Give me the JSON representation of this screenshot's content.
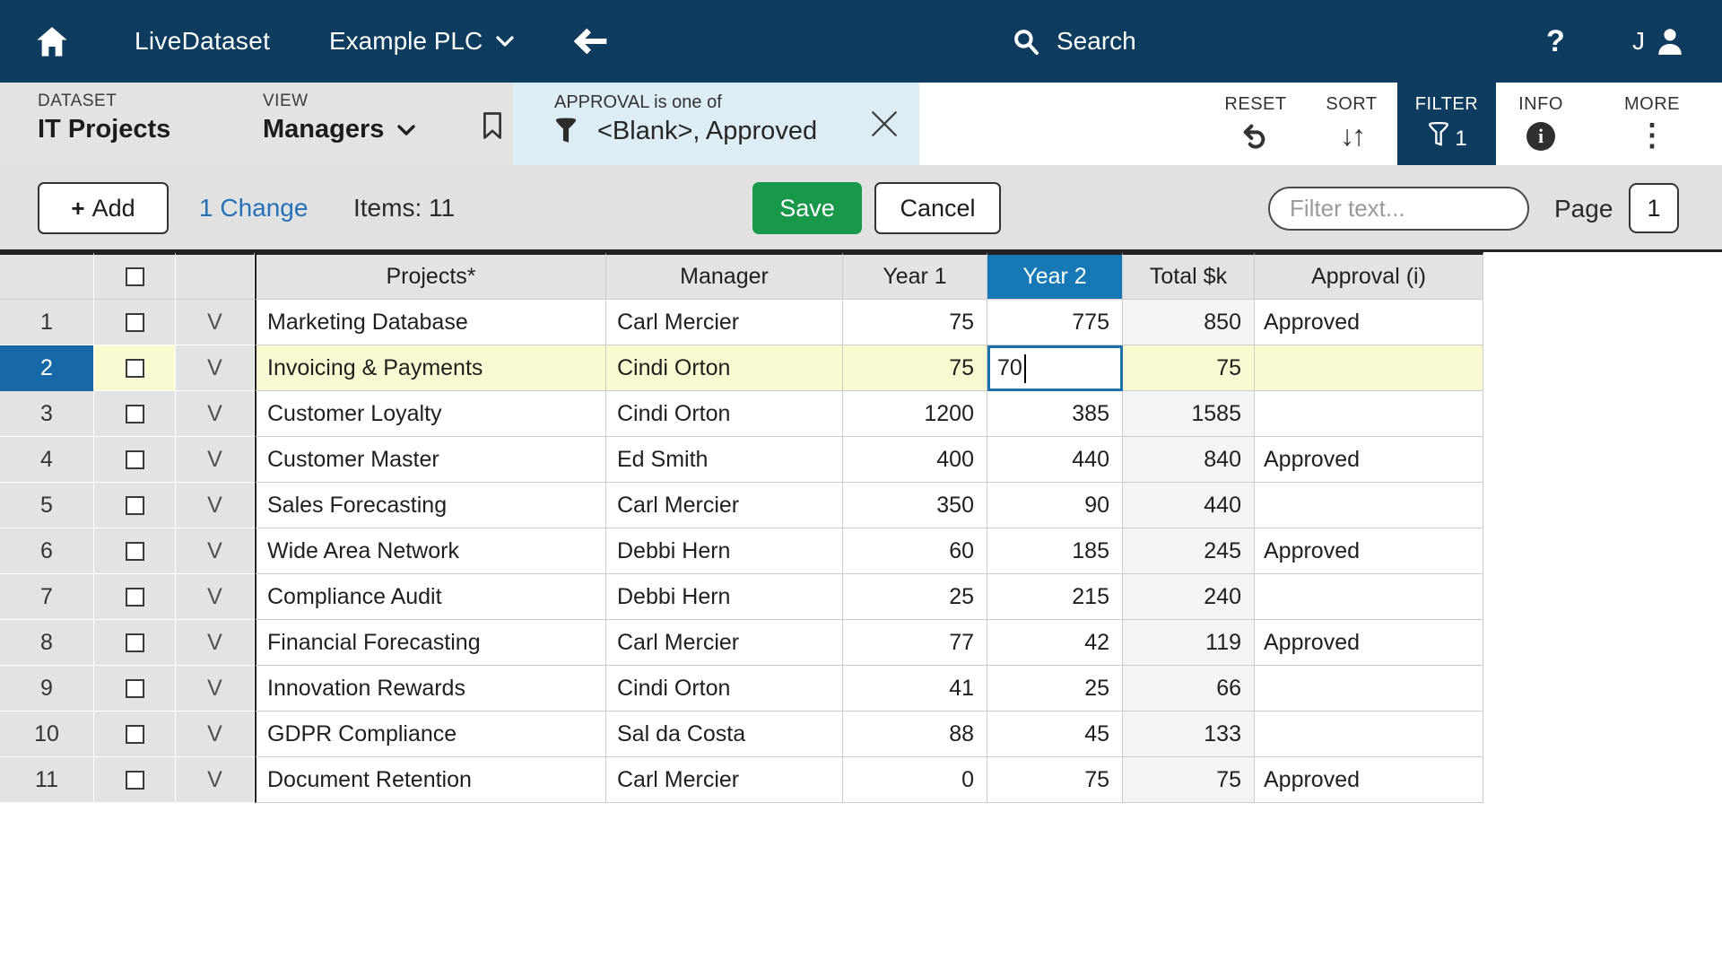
{
  "navbar": {
    "brand": "LiveDataset",
    "org": "Example PLC",
    "search_label": "Search",
    "help_label": "?",
    "user_initial": "J"
  },
  "toolbar": {
    "dataset_label": "DATASET",
    "dataset_name": "IT Projects",
    "view_label": "VIEW",
    "view_name": "Managers",
    "filter_chip": {
      "title": "APPROVAL is one of",
      "value": "<Blank>, Approved"
    },
    "actions": [
      {
        "label": "RESET"
      },
      {
        "label": "SORT"
      },
      {
        "label": "FILTER",
        "badge": "1",
        "active": true
      },
      {
        "label": "INFO"
      },
      {
        "label": "MORE"
      }
    ]
  },
  "actionbar": {
    "add_label": "Add",
    "plus_glyph": "+",
    "changes_label": "1 Change",
    "items_label": "Items: 11",
    "save_label": "Save",
    "cancel_label": "Cancel",
    "filter_placeholder": "Filter text...",
    "page_label": "Page",
    "page_value": "1"
  },
  "table": {
    "columns": [
      "Projects*",
      "Manager",
      "Year 1",
      "Year 2",
      "Total $k",
      "Approval (i)"
    ],
    "active_column": "Year 2",
    "v_marker": "V",
    "edit": {
      "row": 2,
      "column": "Year 2",
      "value": "70"
    },
    "rows": [
      {
        "num": "1",
        "project": "Marketing Database",
        "manager": "Carl Mercier",
        "year1": "75",
        "year2": "775",
        "total": "850",
        "approval": "Approved",
        "selected": false,
        "editing": false
      },
      {
        "num": "2",
        "project": "Invoicing & Payments",
        "manager": "Cindi Orton",
        "year1": "75",
        "year2": "",
        "total": "75",
        "approval": "",
        "selected": true,
        "editing": true
      },
      {
        "num": "3",
        "project": "Customer Loyalty",
        "manager": "Cindi Orton",
        "year1": "1200",
        "year2": "385",
        "total": "1585",
        "approval": "",
        "selected": false,
        "editing": false
      },
      {
        "num": "4",
        "project": "Customer Master",
        "manager": "Ed Smith",
        "year1": "400",
        "year2": "440",
        "total": "840",
        "approval": "Approved",
        "selected": false,
        "editing": false
      },
      {
        "num": "5",
        "project": "Sales Forecasting",
        "manager": "Carl Mercier",
        "year1": "350",
        "year2": "90",
        "total": "440",
        "approval": "",
        "selected": false,
        "editing": false
      },
      {
        "num": "6",
        "project": "Wide Area Network",
        "manager": "Debbi Hern",
        "year1": "60",
        "year2": "185",
        "total": "245",
        "approval": "Approved",
        "selected": false,
        "editing": false
      },
      {
        "num": "7",
        "project": "Compliance Audit",
        "manager": "Debbi Hern",
        "year1": "25",
        "year2": "215",
        "total": "240",
        "approval": "",
        "selected": false,
        "editing": false
      },
      {
        "num": "8",
        "project": "Financial Forecasting",
        "manager": "Carl Mercier",
        "year1": "77",
        "year2": "42",
        "total": "119",
        "approval": "Approved",
        "selected": false,
        "editing": false
      },
      {
        "num": "9",
        "project": "Innovation Rewards",
        "manager": "Cindi Orton",
        "year1": "41",
        "year2": "25",
        "total": "66",
        "approval": "",
        "selected": false,
        "editing": false
      },
      {
        "num": "10",
        "project": "GDPR Compliance",
        "manager": "Sal da Costa",
        "year1": "88",
        "year2": "45",
        "total": "133",
        "approval": "",
        "selected": false,
        "editing": false
      },
      {
        "num": "11",
        "project": "Document Retention",
        "manager": "Carl Mercier",
        "year1": "0",
        "year2": "75",
        "total": "75",
        "approval": "Approved",
        "selected": false,
        "editing": false
      }
    ]
  },
  "colors": {
    "navbar_navy": "#0e3c5e",
    "active_column_blue": "#1778b6",
    "selected_row_number_blue": "#1668a6",
    "selected_row_yellow": "#fafad2",
    "save_green": "#17984a",
    "link_blue": "#2471b8",
    "filter_chip_bg": "#ddedf6",
    "edit_cell_border": "#1a72ad"
  }
}
